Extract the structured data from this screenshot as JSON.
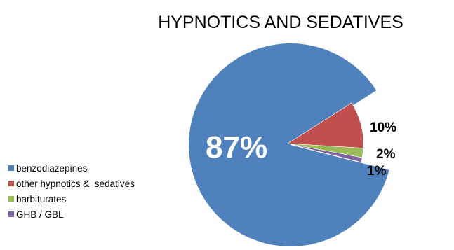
{
  "chart_data": {
    "type": "pie",
    "title": "HYPNOTICS AND SEDATIVES",
    "categories": [
      "benzodiazepines",
      "other hypnotics &  sedatives",
      "barbiturates",
      "GHB / GBL"
    ],
    "values": [
      87,
      10,
      2,
      1
    ],
    "labels": [
      "87%",
      "10%",
      "2%",
      "1%"
    ],
    "colors": [
      "#4f81bd",
      "#c0504d",
      "#9bbb59",
      "#8064a2"
    ],
    "exploded": "benzodiazepines",
    "legend_position": "left"
  }
}
